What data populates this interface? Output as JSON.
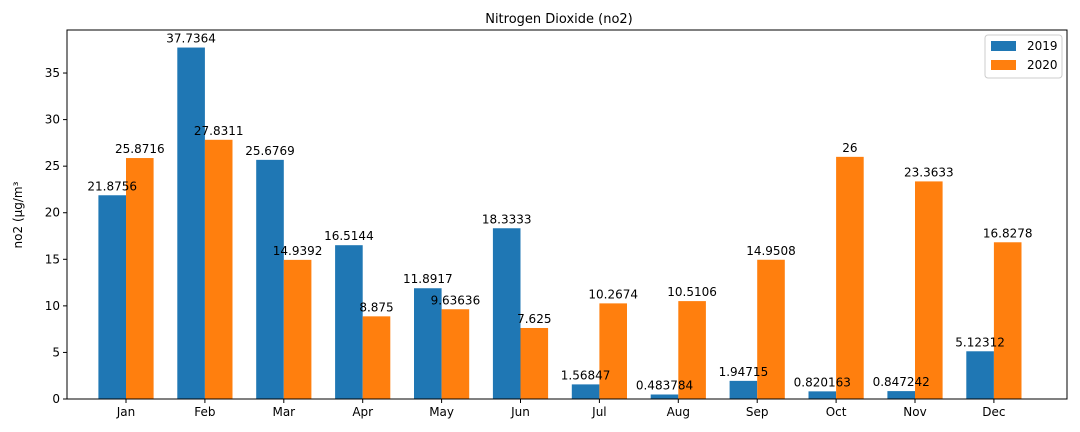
{
  "chart_data": {
    "type": "bar",
    "title": "Nitrogen Dioxide (no2)",
    "xlabel": "",
    "ylabel": "no2 (µg/m³",
    "ylim": [
      0,
      39.62
    ],
    "yticks": [
      0,
      5,
      10,
      15,
      20,
      25,
      30,
      35
    ],
    "grid": false,
    "legend_position": "top-right",
    "categories": [
      "Jan",
      "Feb",
      "Mar",
      "Apr",
      "May",
      "Jun",
      "Jul",
      "Aug",
      "Sep",
      "Oct",
      "Nov",
      "Dec"
    ],
    "series": [
      {
        "name": "2019",
        "color": "#1f77b4",
        "values": [
          21.8756,
          37.7364,
          25.6769,
          16.5144,
          11.8917,
          18.3333,
          1.56847,
          0.483784,
          1.94715,
          0.820163,
          0.847242,
          5.12312
        ],
        "labels": [
          "21.8756",
          "37.7364",
          "25.6769",
          "16.5144",
          "11.8917",
          "18.3333",
          "1.56847",
          "0.483784",
          "1.94715",
          "0.820163",
          "0.847242",
          "5.12312"
        ]
      },
      {
        "name": "2020",
        "color": "#ff7f0e",
        "values": [
          25.8716,
          27.8311,
          14.9392,
          8.875,
          9.63636,
          7.625,
          10.2674,
          10.5106,
          14.9508,
          26,
          23.3633,
          16.8278
        ],
        "labels": [
          "25.8716",
          "27.8311",
          "14.9392",
          "8.875",
          "9.63636",
          "7.625",
          "10.2674",
          "10.5106",
          "14.9508",
          "26",
          "23.3633",
          "16.8278"
        ]
      }
    ]
  }
}
